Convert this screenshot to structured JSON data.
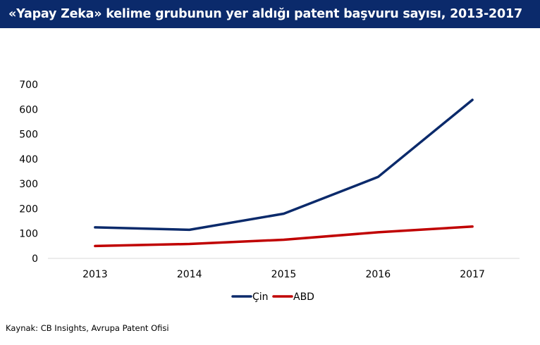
{
  "title": "«Yapay Zeka» kelime grubunun yer aldığı patent başvuru sayısı, 2013-2017",
  "source": "Kaynak: CB Insights, Avrupa Patent Ofisi",
  "colors": {
    "title_bg": "#0b2a6b",
    "title_text": "#ffffff"
  },
  "chart_data": {
    "type": "line",
    "title": "«Yapay Zeka» kelime grubunun yer aldığı patent başvuru sayısı, 2013-2017",
    "xlabel": "",
    "ylabel": "",
    "categories": [
      "2013",
      "2014",
      "2015",
      "2016",
      "2017"
    ],
    "ylim": [
      0,
      700
    ],
    "yticks": [
      "0",
      "100",
      "200",
      "300",
      "400",
      "500",
      "600",
      "700"
    ],
    "grid": false,
    "legend_position": "bottom",
    "series": [
      {
        "name": "Çin",
        "color": "#0b2a6b",
        "values": [
          125,
          115,
          180,
          328,
          638
        ]
      },
      {
        "name": "ABD",
        "color": "#c00000",
        "values": [
          50,
          58,
          75,
          105,
          128
        ]
      }
    ]
  }
}
